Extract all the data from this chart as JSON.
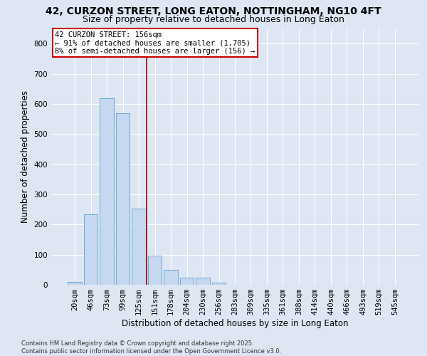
{
  "title_line1": "42, CURZON STREET, LONG EATON, NOTTINGHAM, NG10 4FT",
  "title_line2": "Size of property relative to detached houses in Long Eaton",
  "xlabel": "Distribution of detached houses by size in Long Eaton",
  "ylabel": "Number of detached properties",
  "categories": [
    "20sqm",
    "46sqm",
    "73sqm",
    "99sqm",
    "125sqm",
    "151sqm",
    "178sqm",
    "204sqm",
    "230sqm",
    "256sqm",
    "283sqm",
    "309sqm",
    "335sqm",
    "361sqm",
    "388sqm",
    "414sqm",
    "440sqm",
    "466sqm",
    "493sqm",
    "519sqm",
    "545sqm"
  ],
  "values": [
    10,
    233,
    619,
    568,
    253,
    97,
    50,
    24,
    24,
    8,
    1,
    0,
    0,
    0,
    0,
    0,
    0,
    0,
    0,
    0,
    0
  ],
  "bar_color": "#c5d8f0",
  "bar_edge_color": "#6aaad4",
  "property_line_x": 4.5,
  "annotation_text": "42 CURZON STREET: 156sqm\n← 91% of detached houses are smaller (1,705)\n8% of semi-detached houses are larger (156) →",
  "annotation_box_color": "#ffffff",
  "annotation_box_edge": "#cc0000",
  "vline_color": "#aa0000",
  "ylim": [
    0,
    850
  ],
  "yticks": [
    0,
    100,
    200,
    300,
    400,
    500,
    600,
    700,
    800
  ],
  "background_color": "#dde6f2",
  "grid_color": "#ffffff",
  "footer_line1": "Contains HM Land Registry data © Crown copyright and database right 2025.",
  "footer_line2": "Contains public sector information licensed under the Open Government Licence v3.0.",
  "title_fontsize": 10,
  "subtitle_fontsize": 9,
  "axis_label_fontsize": 8.5,
  "tick_fontsize": 7.5,
  "annotation_fontsize": 7.5,
  "footer_fontsize": 6.0
}
